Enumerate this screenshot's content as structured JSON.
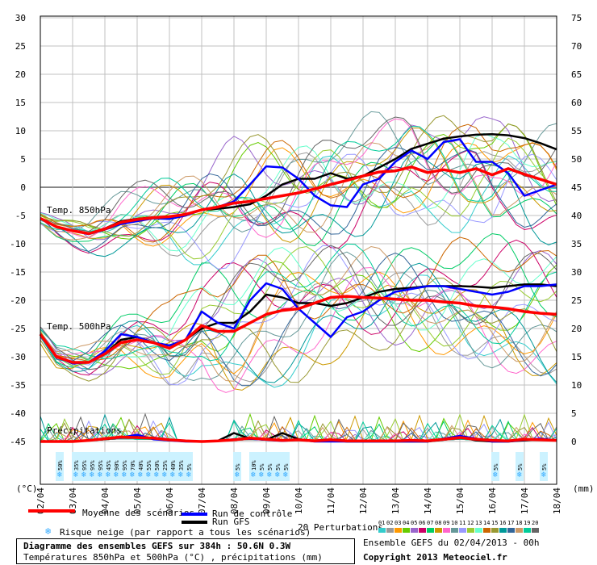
{
  "left_axis": {
    "label": "(°C)",
    "ticks": [
      30,
      25,
      20,
      15,
      10,
      5,
      0,
      -5,
      -10,
      -15,
      -20,
      -25,
      -30,
      -35,
      -40,
      -45
    ]
  },
  "right_axis": {
    "label": "(mm)",
    "ticks": [
      75,
      70,
      65,
      60,
      55,
      50,
      45,
      40,
      35,
      30,
      25,
      20,
      15,
      10,
      5,
      0
    ]
  },
  "x_ticks": [
    "02/04",
    "03/04",
    "04/04",
    "05/04",
    "06/04",
    "07/04",
    "08/04",
    "09/04",
    "10/04",
    "11/04",
    "12/04",
    "13/04",
    "14/04",
    "15/04",
    "16/04",
    "17/04",
    "18/04"
  ],
  "panel_labels": {
    "t850": "Temp. 850hPa",
    "t500": "Temp. 500hPa",
    "precip": "Précipitations"
  },
  "snow_risk": [
    {
      "t": 0.5,
      "pct": "50%"
    },
    {
      "t": 1.0,
      "pct": "35%"
    },
    {
      "t": 1.25,
      "pct": "95%"
    },
    {
      "t": 1.5,
      "pct": "95%"
    },
    {
      "t": 1.75,
      "pct": "95%"
    },
    {
      "t": 2.0,
      "pct": "45%"
    },
    {
      "t": 2.25,
      "pct": "90%"
    },
    {
      "t": 2.5,
      "pct": "95%"
    },
    {
      "t": 2.75,
      "pct": "70%"
    },
    {
      "t": 3.0,
      "pct": "40%"
    },
    {
      "t": 3.25,
      "pct": "55%"
    },
    {
      "t": 3.5,
      "pct": "50%"
    },
    {
      "t": 3.75,
      "pct": "25%"
    },
    {
      "t": 4.0,
      "pct": "40%"
    },
    {
      "t": 4.25,
      "pct": "35%"
    },
    {
      "t": 4.5,
      "pct": "5%"
    },
    {
      "t": 6.0,
      "pct": "5%"
    },
    {
      "t": 6.5,
      "pct": "10%"
    },
    {
      "t": 6.75,
      "pct": "5%"
    },
    {
      "t": 7.0,
      "pct": "5%"
    },
    {
      "t": 7.25,
      "pct": "5%"
    },
    {
      "t": 7.5,
      "pct": "5%"
    },
    {
      "t": 14.0,
      "pct": "5%"
    },
    {
      "t": 14.75,
      "pct": "5%"
    },
    {
      "t": 15.5,
      "pct": "5%"
    }
  ],
  "legend": {
    "mean": "Moyenne des scénarios",
    "control": "Run de contrôle",
    "gfs": "Run GFS",
    "snow": "Risque neige (par rapport a tous les scénarios)",
    "perturbations": "20 Perturbations",
    "pert_labels": [
      "01",
      "02",
      "03",
      "04",
      "05",
      "06",
      "07",
      "08",
      "09",
      "10",
      "11",
      "12",
      "13",
      "14",
      "15",
      "16",
      "17",
      "18",
      "19",
      "20"
    ]
  },
  "footer": {
    "title": "Diagramme des ensembles GEFS sur 384h : 50.6N 0.3W",
    "subtitle": "Températures 850hPa et 500hPa (°C) , précipitations (mm)",
    "run": "Ensemble GEFS du 02/04/2013 - 00h",
    "copyright": "Copyright 2013 Meteociel.fr"
  },
  "colors": {
    "mean": "#ff0000",
    "control": "#0000ff",
    "gfs": "#000000",
    "grid": "#c0c0c0",
    "zero": "#888888",
    "perturbations": [
      "#33cccc",
      "#999999",
      "#ff9900",
      "#66cc00",
      "#9966cc",
      "#cc0066",
      "#00cc66",
      "#cc9900",
      "#ff66cc",
      "#669999",
      "#9999ff",
      "#99cc33",
      "#66ffcc",
      "#cc6600",
      "#999933",
      "#009999",
      "#336699",
      "#cc9966",
      "#00cc99",
      "#666666"
    ]
  },
  "chart_data": [
    {
      "type": "line",
      "title": "Temp. 850hPa",
      "x_unit": "days since 02/04 00h",
      "series": [
        {
          "name": "Moyenne des scénarios",
          "x": [
            0,
            0.5,
            1,
            1.5,
            2,
            2.5,
            3,
            3.5,
            4,
            4.5,
            5,
            5.5,
            6,
            6.5,
            7,
            7.5,
            8,
            8.5,
            9,
            9.5,
            10,
            10.5,
            11,
            11.5,
            12,
            12.5,
            13,
            13.5,
            14,
            14.5,
            15,
            15.5,
            16
          ],
          "y": [
            -5.5,
            -7,
            -7.7,
            -8.2,
            -7.4,
            -6.2,
            -5.7,
            -5.4,
            -5.2,
            -4.8,
            -4,
            -3.5,
            -2.8,
            -2.5,
            -2,
            -1.5,
            -1,
            -0.3,
            0.5,
            1.2,
            2,
            2.7,
            2.9,
            3.6,
            2.6,
            3.1,
            2.6,
            3.3,
            2.2,
            3.3,
            2.3,
            1.4,
            0.5
          ]
        },
        {
          "name": "Run de contrôle",
          "x": [
            0,
            0.5,
            1,
            1.5,
            2,
            2.5,
            3,
            3.5,
            4,
            4.5,
            5,
            5.5,
            6,
            6.5,
            7,
            7.5,
            8,
            8.5,
            9,
            9.5,
            10,
            10.5,
            11,
            11.5,
            12,
            12.5,
            13,
            13.5,
            14,
            14.5,
            15,
            15.5,
            16
          ],
          "y": [
            -5.5,
            -7,
            -7.7,
            -8.3,
            -7.5,
            -6.5,
            -6,
            -5.5,
            -5.6,
            -5,
            -4,
            -3.5,
            -2.5,
            0.5,
            3.7,
            3.5,
            1.5,
            -1.5,
            -3.2,
            -3.5,
            0.5,
            1.5,
            4.5,
            6.5,
            5,
            8,
            8.5,
            4.5,
            4.5,
            2.5,
            -1.5,
            -0.5,
            0.5
          ]
        },
        {
          "name": "Run GFS",
          "x": [
            0,
            0.5,
            1,
            1.5,
            2,
            2.5,
            3,
            3.5,
            4,
            4.5,
            5,
            5.5,
            6,
            6.5,
            7,
            7.5,
            8,
            8.5,
            9,
            9.5,
            10,
            10.5,
            11,
            11.5,
            12,
            12.5,
            13,
            13.5,
            14,
            14.5,
            15,
            15.5,
            16
          ],
          "y": [
            -5.5,
            -7,
            -7.7,
            -8.2,
            -7.3,
            -6,
            -5.6,
            -5.3,
            -5.6,
            -5,
            -4,
            -3.8,
            -3.5,
            -3,
            -1.5,
            0.5,
            1.5,
            1.5,
            2.5,
            1.5,
            2,
            3.5,
            5,
            6.8,
            7.7,
            8.6,
            9,
            9.3,
            9.4,
            9.2,
            8.7,
            7.8,
            6.7
          ]
        }
      ]
    },
    {
      "type": "line",
      "title": "Temp. 500hPa",
      "x_unit": "days since 02/04 00h",
      "series": [
        {
          "name": "Moyenne des scénarios",
          "x": [
            0,
            0.5,
            1,
            1.5,
            2,
            2.5,
            3,
            3.5,
            4,
            4.5,
            5,
            5.5,
            6,
            6.5,
            7,
            7.5,
            8,
            8.5,
            9,
            9.5,
            10,
            10.5,
            11,
            11.5,
            12,
            12.5,
            13,
            13.5,
            14,
            14.5,
            15,
            15.5,
            16
          ],
          "y": [
            -26,
            -30,
            -31,
            -31,
            -29.5,
            -27.5,
            -27,
            -27.5,
            -28.5,
            -27,
            -24.5,
            -25.5,
            -25.5,
            -24,
            -22.5,
            -21.8,
            -21.5,
            -20.5,
            -19.5,
            -19.3,
            -19.5,
            -19.6,
            -19.8,
            -20,
            -20,
            -20.3,
            -20.5,
            -21,
            -21.2,
            -21.5,
            -22,
            -22.3,
            -22.5
          ]
        },
        {
          "name": "Run de contrôle",
          "x": [
            0,
            0.5,
            1,
            1.5,
            2,
            2.5,
            3,
            3.5,
            4,
            4.5,
            5,
            5.5,
            6,
            6.5,
            7,
            7.5,
            8,
            8.5,
            9,
            9.5,
            10,
            10.5,
            11,
            11.5,
            12,
            12.5,
            13,
            13.5,
            14,
            14.5,
            15,
            15.5,
            16
          ],
          "y": [
            -26,
            -30,
            -31.2,
            -31,
            -29,
            -26,
            -26.5,
            -27.5,
            -28,
            -27,
            -22,
            -24,
            -25,
            -20,
            -17,
            -18,
            -21.5,
            -24,
            -26.5,
            -23,
            -22,
            -20,
            -18.5,
            -18,
            -17.5,
            -17.5,
            -18,
            -18.5,
            -19,
            -18.5,
            -17.5,
            -17.5,
            -17.2
          ]
        },
        {
          "name": "Run GFS",
          "x": [
            0,
            0.5,
            1,
            1.5,
            2,
            2.5,
            3,
            3.5,
            4,
            4.5,
            5,
            5.5,
            6,
            6.5,
            7,
            7.5,
            8,
            8.5,
            9,
            9.5,
            10,
            10.5,
            11,
            11.5,
            12,
            12.5,
            13,
            13.5,
            14,
            14.5,
            15,
            15.5,
            16
          ],
          "y": [
            -26,
            -30,
            -31,
            -31,
            -29.5,
            -27,
            -26.5,
            -27.5,
            -28,
            -27,
            -25,
            -24,
            -24,
            -22,
            -19,
            -19.5,
            -20.5,
            -20.5,
            -21,
            -20.5,
            -19.5,
            -18.5,
            -18,
            -17.8,
            -17.5,
            -17.5,
            -17.5,
            -17.6,
            -17.8,
            -17.5,
            -17.2,
            -17.2,
            -17.5
          ]
        }
      ]
    },
    {
      "type": "line",
      "title": "Précipitations",
      "x_unit": "days since 02/04 00h",
      "y_unit": "mm",
      "series": [
        {
          "name": "Moyenne des scénarios",
          "x": [
            0,
            0.5,
            1,
            1.5,
            2,
            2.5,
            3,
            3.5,
            4,
            4.5,
            5,
            5.5,
            6,
            6.5,
            7,
            7.5,
            8,
            8.5,
            9,
            9.5,
            10,
            10.5,
            11,
            11.5,
            12,
            12.5,
            13,
            13.5,
            14,
            14.5,
            15,
            15.5,
            16
          ],
          "y": [
            0,
            0,
            0,
            0.2,
            0.5,
            0.8,
            0.7,
            0.6,
            0.3,
            0.1,
            0,
            0.1,
            0.3,
            0.6,
            0.4,
            0.2,
            0.3,
            0.1,
            0.3,
            0.1,
            0.1,
            0.1,
            0.1,
            0.2,
            0.1,
            0.4,
            0.7,
            0.4,
            0.2,
            0.1,
            0.4,
            0.3,
            0.2
          ]
        },
        {
          "name": "Run de contrôle",
          "x": [
            0,
            0.5,
            1,
            1.5,
            2,
            2.5,
            3,
            3.5,
            4,
            4.5,
            5,
            5.5,
            6,
            6.5,
            7,
            7.5,
            8,
            8.5,
            9,
            9.5,
            10,
            10.5,
            11,
            11.5,
            12,
            12.5,
            13,
            13.5,
            14,
            14.5,
            15,
            15.5,
            16
          ],
          "y": [
            0,
            0,
            0,
            0.2,
            0.5,
            0.7,
            1.2,
            0.4,
            0.2,
            0,
            0,
            0.1,
            0.4,
            0.5,
            0.3,
            0.1,
            0.3,
            0,
            0,
            0,
            0,
            0,
            0,
            0,
            0,
            0.5,
            1,
            0.5,
            0,
            0,
            0.3,
            0.5,
            0.2
          ]
        },
        {
          "name": "Run GFS",
          "x": [
            0,
            0.5,
            1,
            1.5,
            2,
            2.5,
            3,
            3.5,
            4,
            4.5,
            5,
            5.5,
            6,
            6.5,
            7,
            7.5,
            8,
            8.5,
            9,
            9.5,
            10,
            10.5,
            11,
            11.5,
            12,
            12.5,
            13,
            13.5,
            14,
            14.5,
            15,
            15.5,
            16
          ],
          "y": [
            0,
            0,
            0,
            0.2,
            0.4,
            0.8,
            0.8,
            0.5,
            0.2,
            0.1,
            0,
            0.1,
            1.5,
            0.5,
            0.3,
            1.5,
            0.4,
            0.1,
            0.2,
            0,
            0,
            0,
            0,
            0,
            0,
            0.3,
            0.8,
            0.2,
            0,
            0,
            0.2,
            0.4,
            0.2
          ]
        }
      ]
    }
  ]
}
